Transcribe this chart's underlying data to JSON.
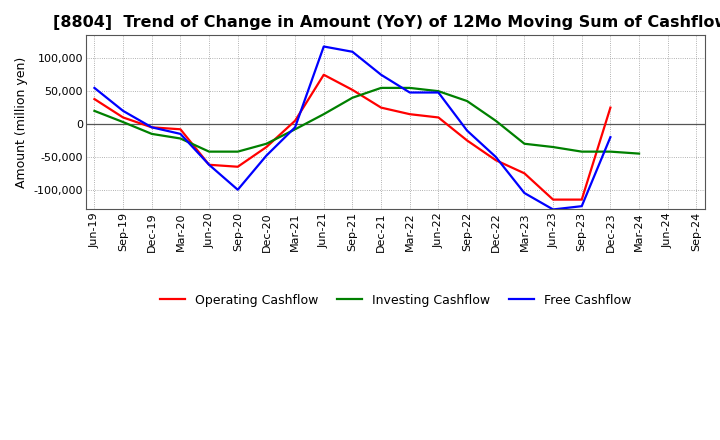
{
  "title": "[8804]  Trend of Change in Amount (YoY) of 12Mo Moving Sum of Cashflows",
  "ylabel": "Amount (million yen)",
  "background_color": "#ffffff",
  "grid_color": "#999999",
  "title_fontsize": 11.5,
  "label_fontsize": 9,
  "tick_fontsize": 8,
  "ylim": [
    -130000,
    135000
  ],
  "yticks": [
    -100000,
    -50000,
    0,
    50000,
    100000
  ],
  "x_labels": [
    "Jun-19",
    "Sep-19",
    "Dec-19",
    "Mar-20",
    "Jun-20",
    "Sep-20",
    "Dec-20",
    "Mar-21",
    "Jun-21",
    "Sep-21",
    "Dec-21",
    "Mar-22",
    "Jun-22",
    "Sep-22",
    "Dec-22",
    "Mar-23",
    "Jun-23",
    "Sep-23",
    "Dec-23",
    "Mar-24",
    "Jun-24",
    "Sep-24"
  ],
  "operating_cashflow": [
    38000,
    10000,
    -5000,
    -8000,
    -62000,
    -65000,
    -35000,
    5000,
    75000,
    52000,
    25000,
    15000,
    10000,
    -25000,
    -55000,
    -75000,
    -115000,
    -115000,
    25000,
    null,
    null,
    null
  ],
  "investing_cashflow": [
    20000,
    3000,
    -15000,
    -22000,
    -42000,
    -42000,
    -30000,
    -8000,
    15000,
    40000,
    55000,
    55000,
    50000,
    35000,
    5000,
    -30000,
    -35000,
    -42000,
    -42000,
    -45000,
    null,
    null
  ],
  "free_cashflow": [
    55000,
    20000,
    -5000,
    -15000,
    -62000,
    -100000,
    -48000,
    -5000,
    118000,
    110000,
    75000,
    48000,
    48000,
    -10000,
    -50000,
    -105000,
    -130000,
    -125000,
    -20000,
    null,
    null,
    null
  ],
  "operating_color": "#ff0000",
  "investing_color": "#008000",
  "free_color": "#0000ff",
  "line_width": 1.6
}
